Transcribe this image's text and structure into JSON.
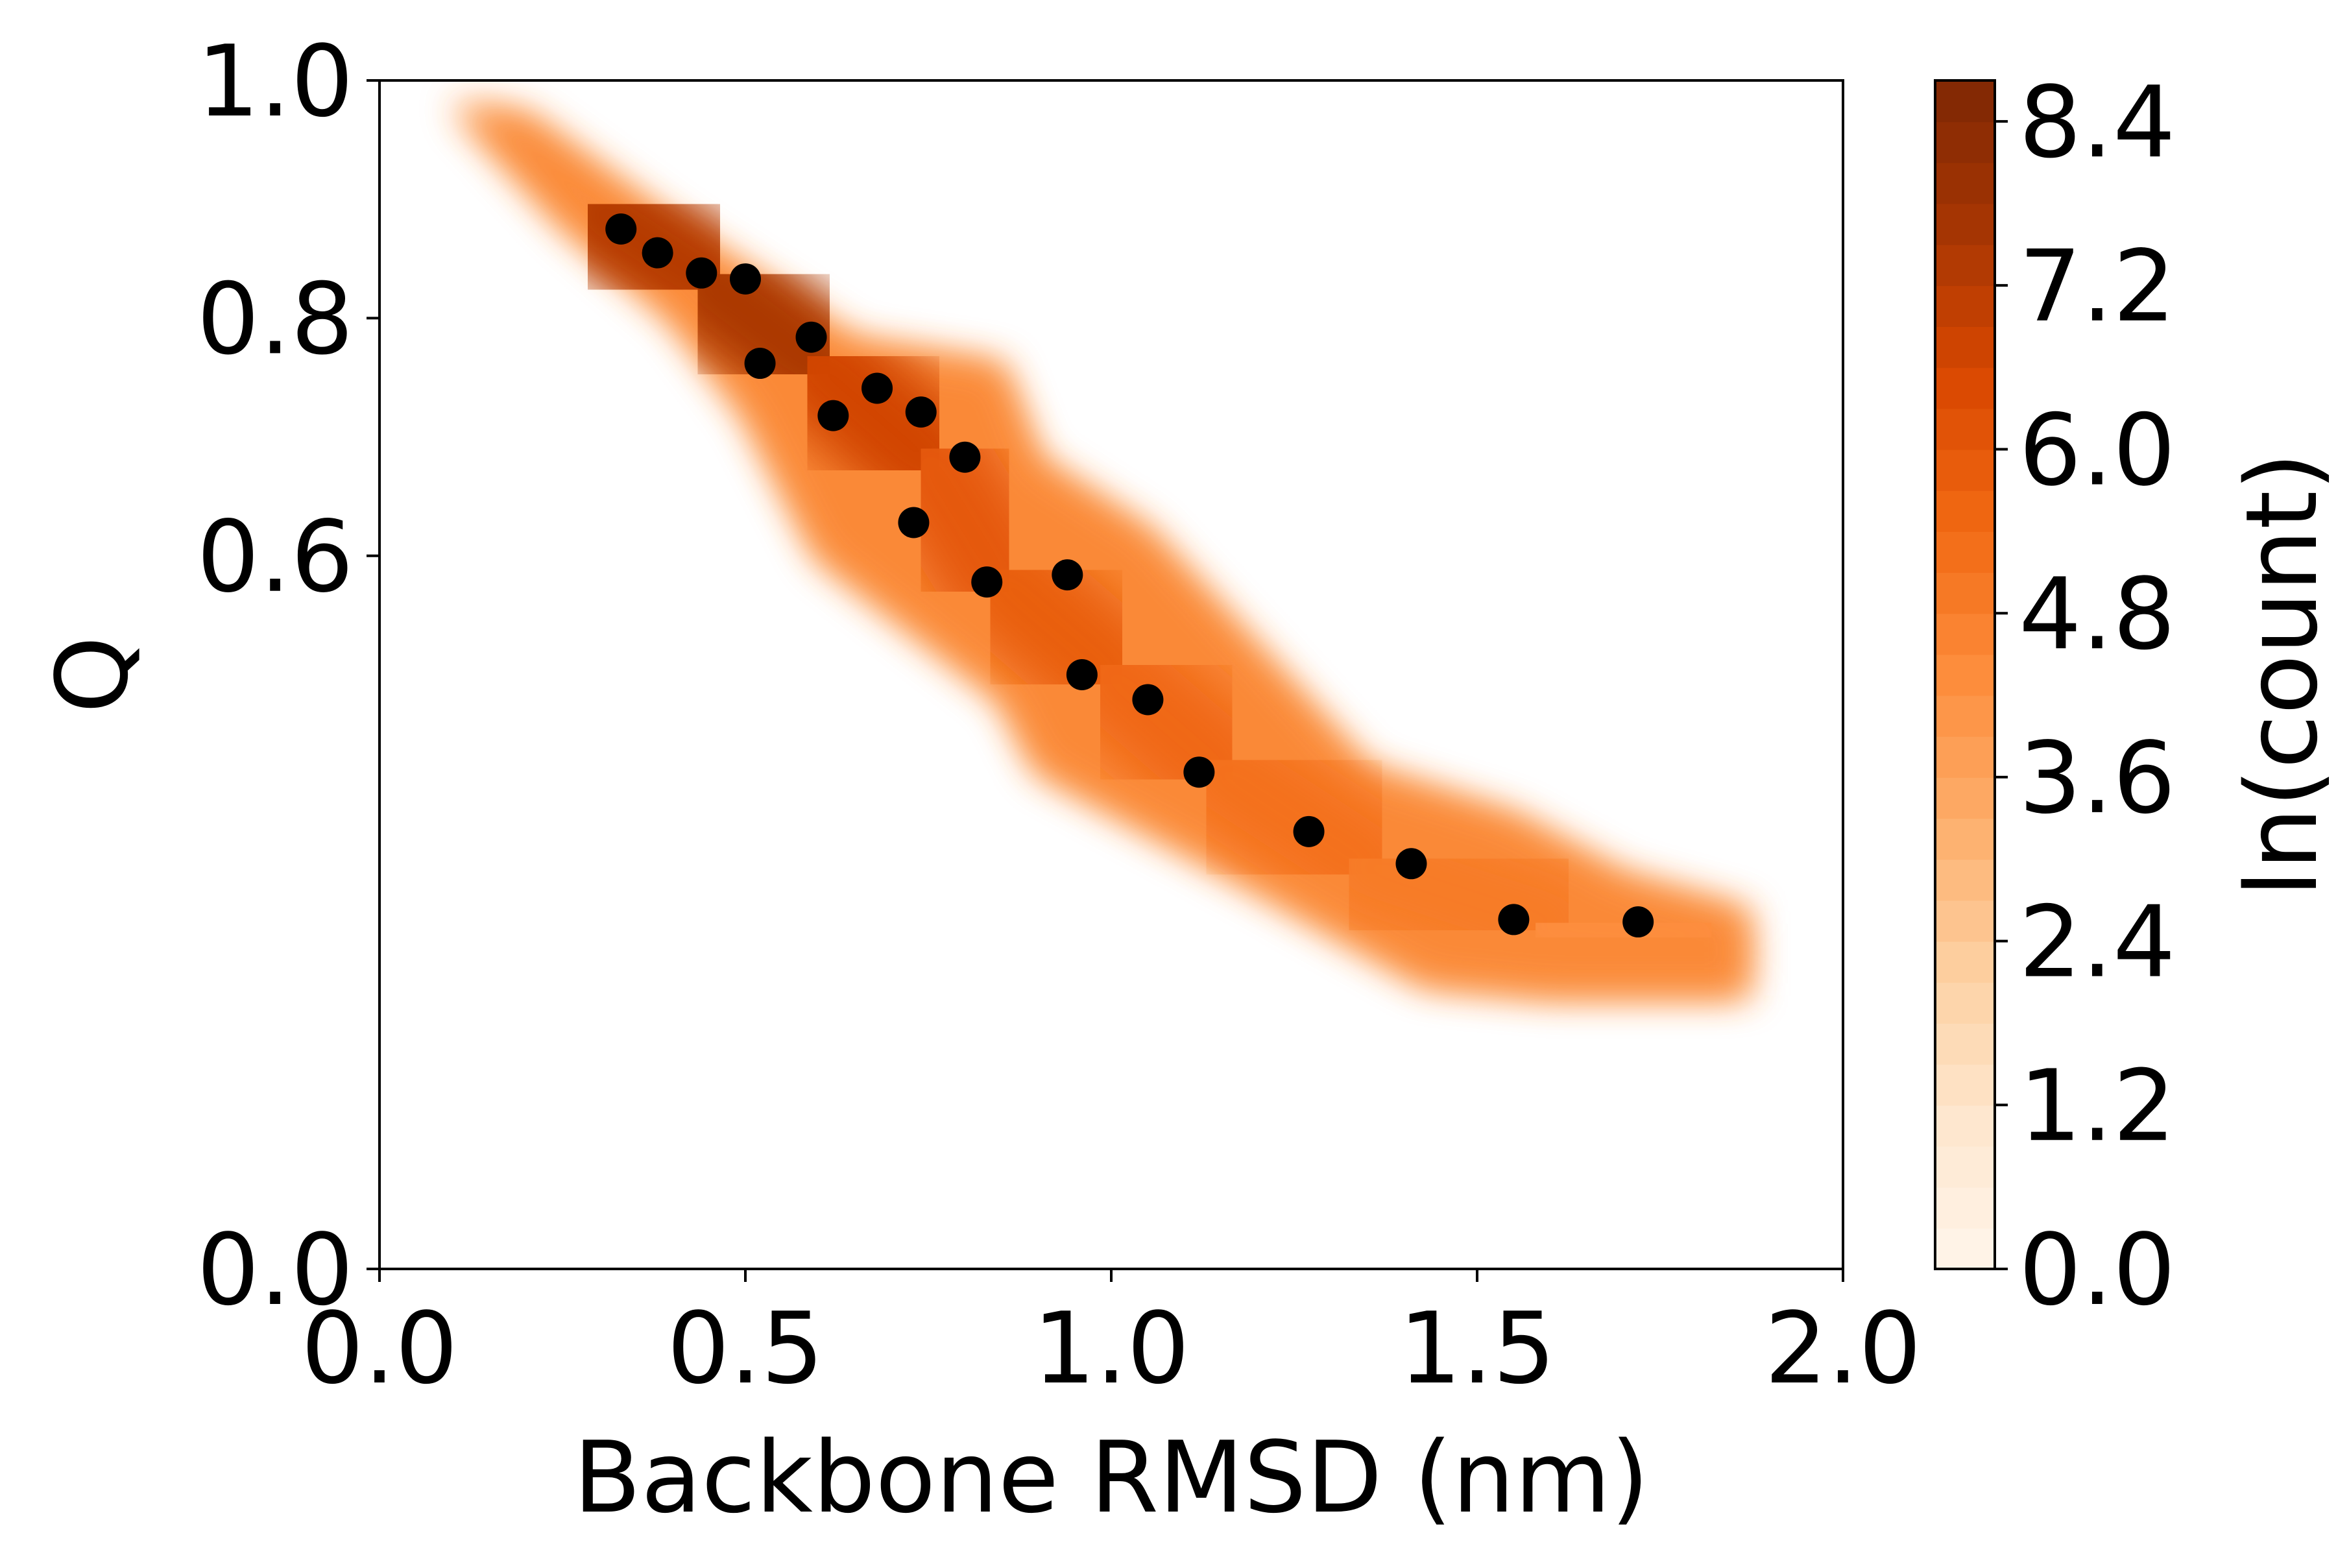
{
  "chart_data": {
    "type": "scatter",
    "xlabel": "Backbone RMSD (nm)",
    "ylabel": "Q",
    "xlim": [
      0.0,
      2.0
    ],
    "ylim": [
      0.0,
      1.0
    ],
    "xticks": [
      "0.0",
      "0.5",
      "1.0",
      "1.5",
      "2.0"
    ],
    "xtick_values": [
      0.0,
      0.5,
      1.0,
      1.5,
      2.0
    ],
    "yticks": [
      "0.0",
      "0.6",
      "0.8",
      "1.0"
    ],
    "ytick_values": [
      0.0,
      0.6,
      0.8,
      1.0
    ],
    "grid": false,
    "density": {
      "type": "filled-contour",
      "colormap": "Oranges",
      "colorbar_label": "ln(count)",
      "colorbar_ticks": [
        "0.0",
        "1.2",
        "2.4",
        "3.6",
        "4.8",
        "6.0",
        "7.2",
        "8.4"
      ],
      "colorbar_tick_values": [
        0.0,
        1.2,
        2.4,
        3.6,
        4.8,
        6.0,
        7.2,
        8.4
      ],
      "colorbar_range": [
        0.0,
        8.7
      ],
      "levels": 29,
      "region": {
        "upper": [
          [
            0.1,
            0.98
          ],
          [
            0.2,
            0.97
          ],
          [
            0.4,
            0.88
          ],
          [
            0.55,
            0.82
          ],
          [
            0.65,
            0.78
          ],
          [
            0.85,
            0.76
          ],
          [
            0.9,
            0.68
          ],
          [
            1.05,
            0.62
          ],
          [
            1.2,
            0.52
          ],
          [
            1.35,
            0.42
          ],
          [
            1.55,
            0.38
          ],
          [
            1.7,
            0.33
          ],
          [
            1.87,
            0.3
          ]
        ],
        "lower": [
          [
            0.1,
            0.98
          ],
          [
            0.25,
            0.88
          ],
          [
            0.4,
            0.8
          ],
          [
            0.5,
            0.72
          ],
          [
            0.6,
            0.6
          ],
          [
            0.85,
            0.48
          ],
          [
            0.9,
            0.42
          ],
          [
            1.2,
            0.32
          ],
          [
            1.43,
            0.24
          ],
          [
            1.6,
            0.23
          ],
          [
            1.87,
            0.23
          ]
        ]
      },
      "ridge": [
        [
          0.3,
          0.89,
          6.8
        ],
        [
          0.45,
          0.83,
          7.8
        ],
        [
          0.6,
          0.76,
          7.2
        ],
        [
          0.75,
          0.68,
          6.2
        ],
        [
          0.85,
          0.58,
          5.8
        ],
        [
          1.0,
          0.5,
          5.8
        ],
        [
          1.15,
          0.42,
          5.2
        ],
        [
          1.35,
          0.34,
          5.2
        ],
        [
          1.6,
          0.29,
          4.6
        ],
        [
          1.8,
          0.28,
          4.1
        ]
      ]
    },
    "series": [
      {
        "marker": "black-dot",
        "x": [
          0.33,
          0.38,
          0.44,
          0.5,
          0.52,
          0.59,
          0.62,
          0.68,
          0.74,
          0.8,
          0.73,
          0.83,
          0.94,
          0.96,
          1.05,
          1.12,
          1.27,
          1.41,
          1.55,
          1.72
        ],
        "y": [
          0.875,
          0.855,
          0.838,
          0.833,
          0.762,
          0.784,
          0.718,
          0.741,
          0.721,
          0.683,
          0.628,
          0.578,
          0.584,
          0.5,
          0.479,
          0.418,
          0.368,
          0.341,
          0.294,
          0.292
        ]
      }
    ]
  }
}
